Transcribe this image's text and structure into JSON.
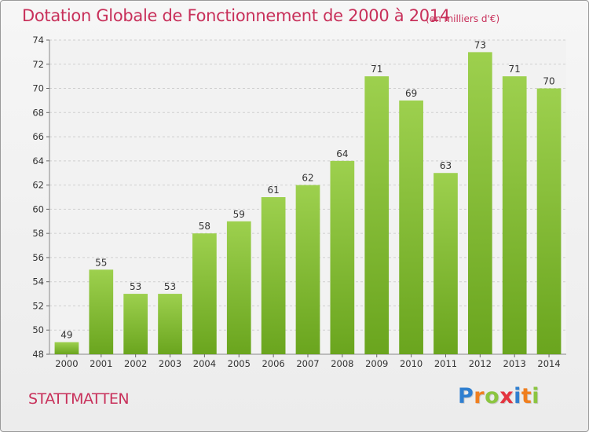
{
  "header": {
    "title": "Dotation Globale de Fonctionnement de 2000 à 2014",
    "subtitle": "(en milliers d'€)"
  },
  "footer": {
    "commune": "STATTMATTEN",
    "logo_letters": [
      {
        "char": "P",
        "color": "#2f7fd0"
      },
      {
        "char": "r",
        "color": "#f07f1f"
      },
      {
        "char": "o",
        "color": "#8bc540"
      },
      {
        "char": "x",
        "color": "#e4343f"
      },
      {
        "char": "i",
        "color": "#2f7fd0"
      },
      {
        "char": "t",
        "color": "#f07f1f"
      },
      {
        "char": "i",
        "color": "#8bc540"
      }
    ]
  },
  "chart_data": {
    "type": "bar",
    "categories": [
      "2000",
      "2001",
      "2002",
      "2003",
      "2004",
      "2005",
      "2006",
      "2007",
      "2008",
      "2009",
      "2010",
      "2011",
      "2012",
      "2013",
      "2014"
    ],
    "values": [
      49,
      55,
      53,
      53,
      58,
      59,
      61,
      62,
      64,
      71,
      69,
      63,
      73,
      71,
      70
    ],
    "data_labels": [
      "49",
      "55",
      "53",
      "53",
      "58",
      "59",
      "61",
      "62",
      "64",
      "71",
      "69",
      "63",
      "73",
      "71",
      "70"
    ],
    "ylim": [
      48,
      74
    ],
    "yticks": [
      48,
      50,
      52,
      54,
      56,
      58,
      60,
      62,
      64,
      66,
      68,
      70,
      72,
      74
    ],
    "grid": true,
    "bar_color_top": "#9dd04e",
    "bar_color_bottom": "#6aa51e"
  }
}
